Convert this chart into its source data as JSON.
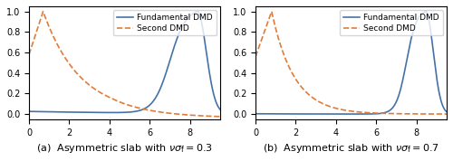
{
  "xlim": [
    0,
    9.5
  ],
  "ylim": [
    -0.05,
    1.05
  ],
  "yticks": [
    0.0,
    0.2,
    0.4,
    0.6,
    0.8,
    1.0
  ],
  "xticks": [
    0,
    2,
    4,
    6,
    8
  ],
  "fundamental_color": "#4472a8",
  "second_color": "#e07b39",
  "fundamental_label": "Fundamental DMD",
  "second_label": "Second DMD",
  "subtitle_a": "(a)  Asymmetric slab with $\\nu\\sigma_\\mathrm{f} = 0.3$",
  "subtitle_b": "(b)  Asymmetric slab with $\\nu\\sigma_\\mathrm{f} = 0.7$",
  "figsize": [
    5.0,
    1.78
  ],
  "dpi": 100
}
